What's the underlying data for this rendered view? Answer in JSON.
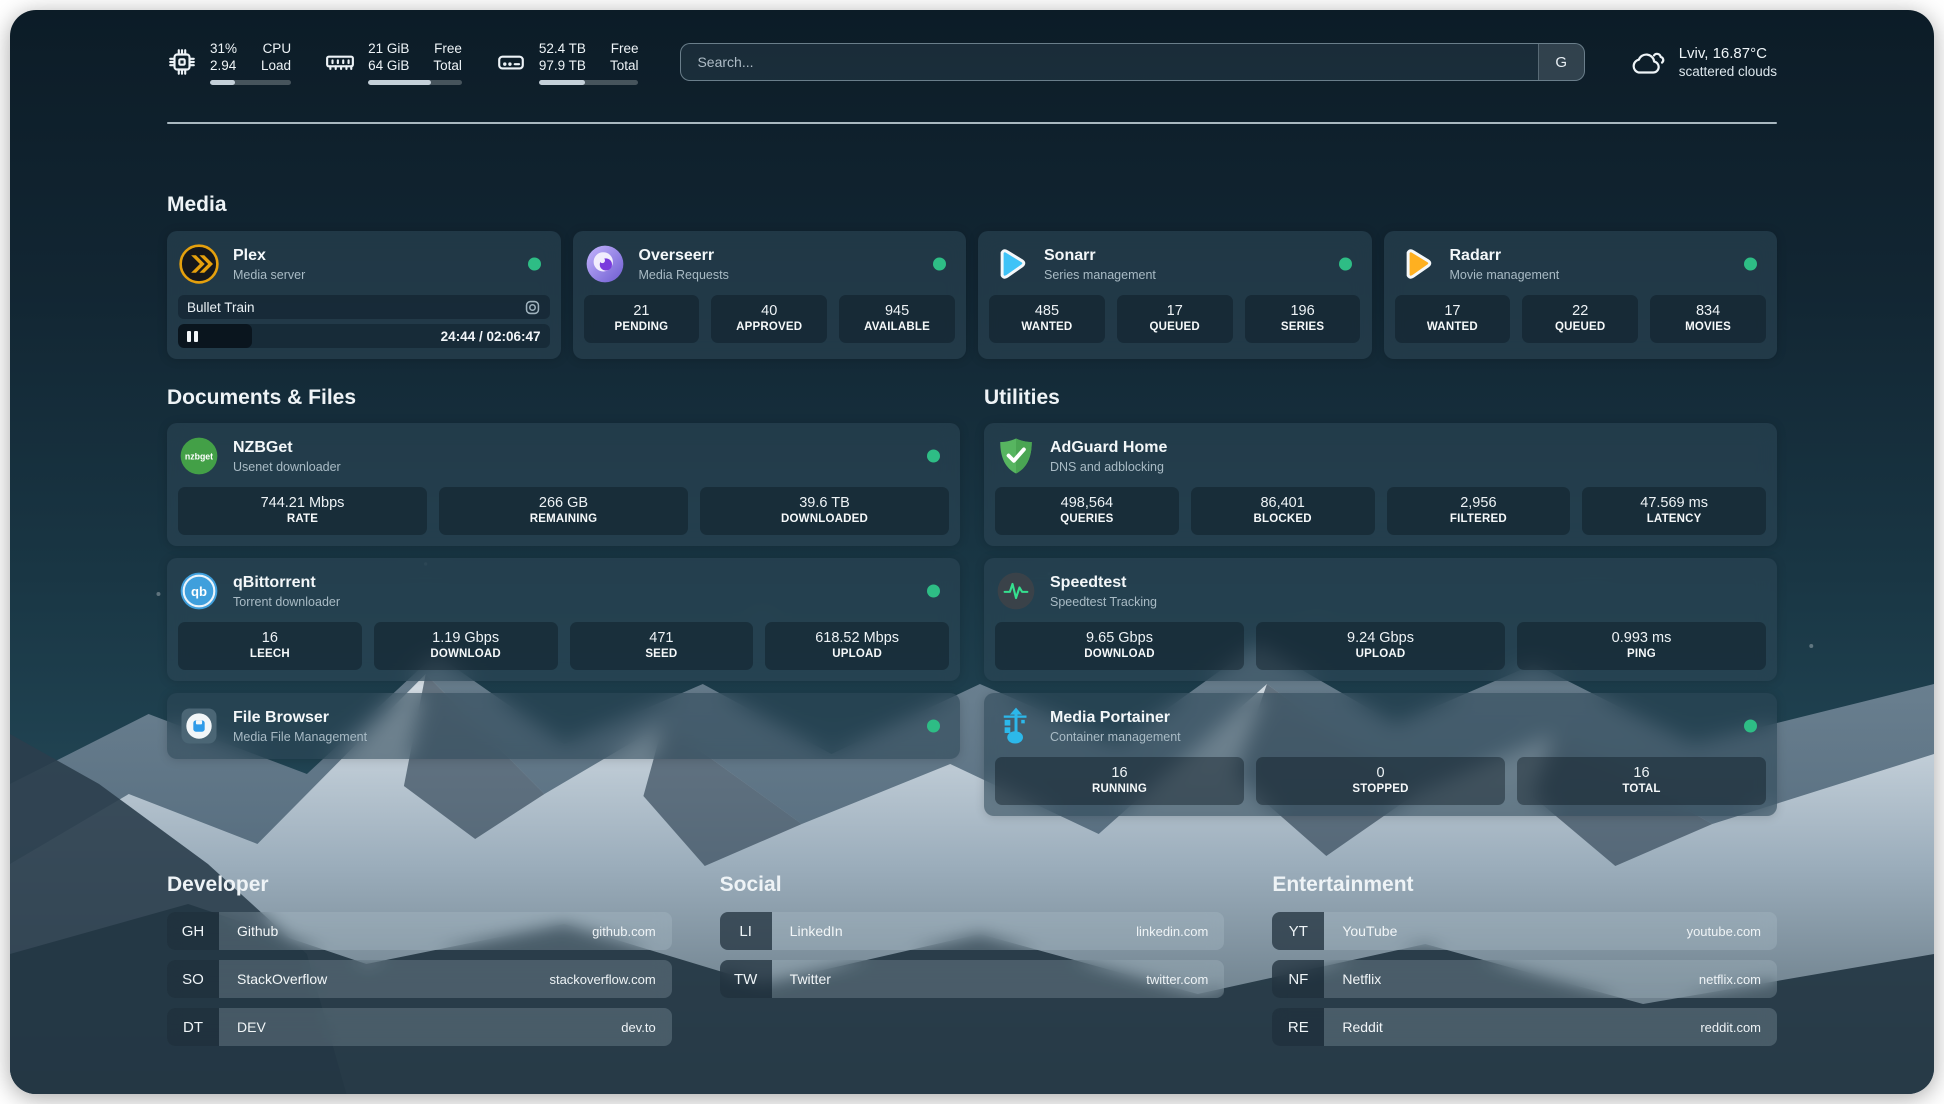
{
  "theme": {
    "status_online": "#2ebd85",
    "plex_gold": "#e5a00d",
    "sonarr_blue": "#3fc3f7",
    "radarr_orange": "#ffb020",
    "nzbget_green": "#43a047",
    "qbittorrent_blue": "#3f9fdc",
    "adguard_green": "#57b560",
    "speedtest_green": "#35e08f",
    "portainer_blue": "#2cb8ea",
    "progress_fill": "#c4d0d9"
  },
  "topbar": {
    "cpu": {
      "value_primary": "31%",
      "value_secondary": "2.94",
      "label_primary": "CPU",
      "label_secondary": "Load",
      "progress_percent": 31
    },
    "memory": {
      "value_primary": "21 GiB",
      "value_secondary": "64 GiB",
      "label_primary": "Free",
      "label_secondary": "Total",
      "progress_percent": 67
    },
    "disk": {
      "value_primary": "52.4 TB",
      "value_secondary": "97.9 TB",
      "label_primary": "Free",
      "label_secondary": "Total",
      "progress_percent": 46
    },
    "search": {
      "placeholder": "Search...",
      "button_label": "G"
    },
    "weather": {
      "summary": "Lviv, 16.87°C",
      "condition": "scattered clouds"
    }
  },
  "media": {
    "title": "Media",
    "apps": [
      {
        "name": "Plex",
        "description": "Media server",
        "online": true,
        "now_playing": {
          "title": "Bullet Train",
          "time": "24:44 / 02:06:47",
          "progress_percent": 20
        }
      },
      {
        "name": "Overseerr",
        "description": "Media Requests",
        "online": true,
        "stats": [
          {
            "value": "21",
            "label": "PENDING"
          },
          {
            "value": "40",
            "label": "APPROVED"
          },
          {
            "value": "945",
            "label": "AVAILABLE"
          }
        ]
      },
      {
        "name": "Sonarr",
        "description": "Series management",
        "online": true,
        "stats": [
          {
            "value": "485",
            "label": "WANTED"
          },
          {
            "value": "17",
            "label": "QUEUED"
          },
          {
            "value": "196",
            "label": "SERIES"
          }
        ]
      },
      {
        "name": "Radarr",
        "description": "Movie management",
        "online": true,
        "stats": [
          {
            "value": "17",
            "label": "WANTED"
          },
          {
            "value": "22",
            "label": "QUEUED"
          },
          {
            "value": "834",
            "label": "MOVIES"
          }
        ]
      }
    ]
  },
  "documents": {
    "title": "Documents & Files",
    "apps": [
      {
        "name": "NZBGet",
        "description": "Usenet downloader",
        "online": true,
        "stats": [
          {
            "value": "744.21 Mbps",
            "label": "RATE"
          },
          {
            "value": "266 GB",
            "label": "REMAINING"
          },
          {
            "value": "39.6 TB",
            "label": "DOWNLOADED"
          }
        ]
      },
      {
        "name": "qBittorrent",
        "description": "Torrent downloader",
        "online": true,
        "stats": [
          {
            "value": "16",
            "label": "LEECH"
          },
          {
            "value": "1.19 Gbps",
            "label": "DOWNLOAD"
          },
          {
            "value": "471",
            "label": "SEED"
          },
          {
            "value": "618.52 Mbps",
            "label": "UPLOAD"
          }
        ]
      },
      {
        "name": "File Browser",
        "description": "Media File Management",
        "online": true
      }
    ]
  },
  "utilities": {
    "title": "Utilities",
    "apps": [
      {
        "name": "AdGuard Home",
        "description": "DNS and adblocking",
        "stats": [
          {
            "value": "498,564",
            "label": "QUERIES"
          },
          {
            "value": "86,401",
            "label": "BLOCKED"
          },
          {
            "value": "2,956",
            "label": "FILTERED"
          },
          {
            "value": "47.569 ms",
            "label": "LATENCY"
          }
        ]
      },
      {
        "name": "Speedtest",
        "description": "Speedtest Tracking",
        "stats": [
          {
            "value": "9.65 Gbps",
            "label": "DOWNLOAD"
          },
          {
            "value": "9.24 Gbps",
            "label": "UPLOAD"
          },
          {
            "value": "0.993 ms",
            "label": "PING"
          }
        ]
      },
      {
        "name": "Media Portainer",
        "description": "Container management",
        "online": true,
        "stats": [
          {
            "value": "16",
            "label": "RUNNING"
          },
          {
            "value": "0",
            "label": "STOPPED"
          },
          {
            "value": "16",
            "label": "TOTAL"
          }
        ]
      }
    ]
  },
  "bookmarks": [
    {
      "title": "Developer",
      "items": [
        {
          "abbr": "GH",
          "name": "Github",
          "domain": "github.com"
        },
        {
          "abbr": "SO",
          "name": "StackOverflow",
          "domain": "stackoverflow.com"
        },
        {
          "abbr": "DT",
          "name": "DEV",
          "domain": "dev.to"
        }
      ]
    },
    {
      "title": "Social",
      "items": [
        {
          "abbr": "LI",
          "name": "LinkedIn",
          "domain": "linkedin.com"
        },
        {
          "abbr": "TW",
          "name": "Twitter",
          "domain": "twitter.com"
        }
      ]
    },
    {
      "title": "Entertainment",
      "items": [
        {
          "abbr": "YT",
          "name": "YouTube",
          "domain": "youtube.com"
        },
        {
          "abbr": "NF",
          "name": "Netflix",
          "domain": "netflix.com"
        },
        {
          "abbr": "RE",
          "name": "Reddit",
          "domain": "reddit.com"
        }
      ]
    }
  ]
}
